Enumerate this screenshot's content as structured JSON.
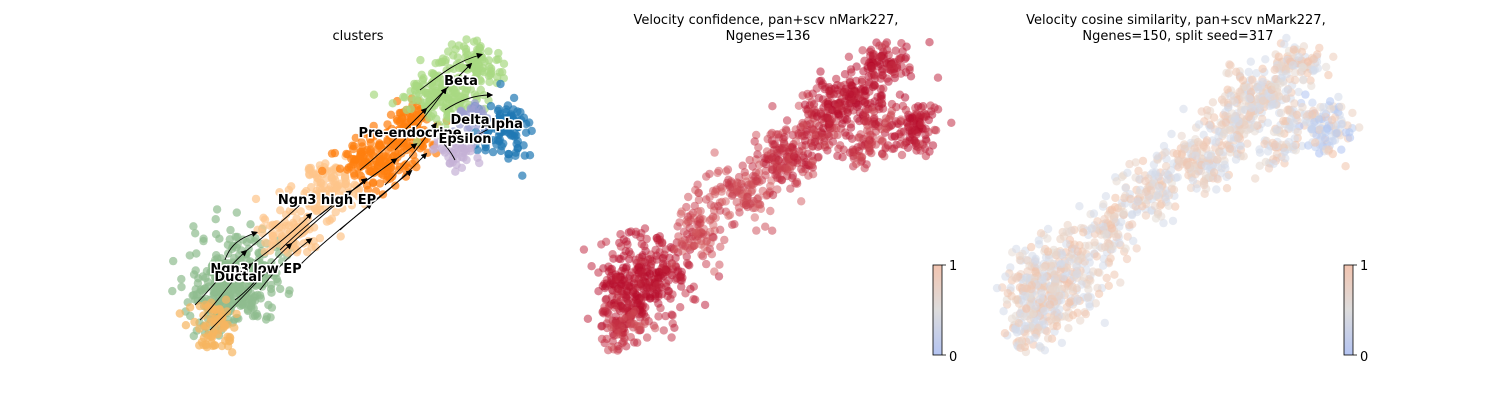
{
  "chart_data": [
    {
      "type": "scatter",
      "title": "clusters",
      "clusters": [
        {
          "name": "Ngn3 low EP",
          "color": "#8fbc8f"
        },
        {
          "name": "Ductal",
          "color": "#f6b55f"
        },
        {
          "name": "Ngn3 high EP",
          "color": "#fdc48a"
        },
        {
          "name": "Pre-endocrine",
          "color": "#ff7f0e"
        },
        {
          "name": "Beta",
          "color": "#a8d882"
        },
        {
          "name": "Alpha",
          "color": "#1f77b4"
        },
        {
          "name": "Delta",
          "color": "#9c9ed1"
        },
        {
          "name": "Epsilon",
          "color": "#c5b0d5"
        }
      ],
      "streamlines": true
    },
    {
      "type": "scatter",
      "title": [
        "Velocity confidence, pan+scv nMark227,",
        "Ngenes=136"
      ],
      "colorbar": {
        "ticks": [
          "1",
          "0"
        ],
        "range": [
          0,
          1
        ],
        "cmap": "coolwarm"
      }
    },
    {
      "type": "scatter",
      "title": [
        "Velocity cosine similarity, pan+scv nMark227,",
        "Ngenes=150, split seed=317"
      ],
      "colorbar": {
        "ticks": [
          "1",
          "0"
        ],
        "range": [
          0,
          1
        ],
        "cmap": "coolwarm"
      }
    }
  ]
}
